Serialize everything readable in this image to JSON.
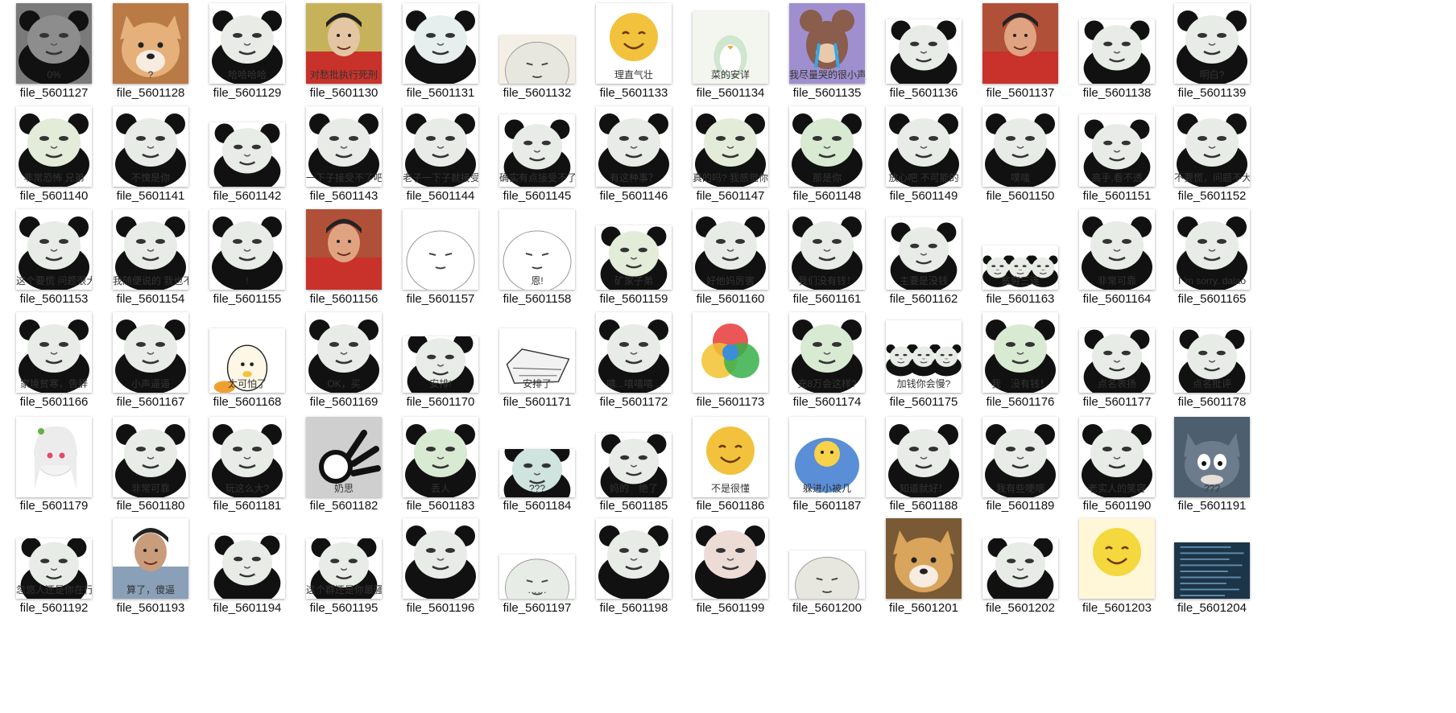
{
  "files": [
    {
      "name": "file_5601127",
      "caption": "0%",
      "bg": "#7a7a7a",
      "face": "#8d8d8d",
      "kind": "panda",
      "h": 100
    },
    {
      "name": "file_5601128",
      "caption": "?",
      "bg": "#b97a45",
      "face": "#e6b07a",
      "kind": "dog",
      "h": 100
    },
    {
      "name": "file_5601129",
      "caption": "哈哈哈哈",
      "bg": "#ffffff",
      "face": "#e9ece6",
      "kind": "panda",
      "h": 100
    },
    {
      "name": "file_5601130",
      "caption": "对愁批执行死刑",
      "bg": "#c7b25c",
      "face": "#e5c6a4",
      "kind": "person",
      "h": 100
    },
    {
      "name": "file_5601131",
      "caption": "",
      "bg": "#ffffff",
      "face": "#e6eeee",
      "kind": "panda",
      "h": 100
    },
    {
      "name": "file_5601132",
      "caption": "",
      "bg": "#f4efe4",
      "face": "#e7e7df",
      "kind": "blob",
      "h": 60
    },
    {
      "name": "file_5601133",
      "caption": "理直气壮",
      "bg": "#ffffff",
      "face": "#f2c23d",
      "kind": "smile",
      "h": 100
    },
    {
      "name": "file_5601134",
      "caption": "菜的安详",
      "bg": "#f3f6ee",
      "face": "#e7ede7",
      "kind": "penguin",
      "h": 90
    },
    {
      "name": "file_5601135",
      "caption": "我尽量哭的很小声",
      "bg": "#9f8fce",
      "face": "#8a5d4c",
      "kind": "mouse",
      "h": 100
    },
    {
      "name": "file_5601136",
      "caption": "",
      "bg": "#ffffff",
      "face": "#e7ece6",
      "kind": "panda",
      "h": 80
    },
    {
      "name": "file_5601137",
      "caption": "",
      "bg": "#b05038",
      "face": "#e0a382",
      "kind": "person",
      "h": 100
    },
    {
      "name": "file_5601138",
      "caption": "",
      "bg": "#ffffff",
      "face": "#e8ece6",
      "kind": "panda",
      "h": 80
    },
    {
      "name": "file_5601139",
      "caption": "明白?",
      "bg": "#ffffff",
      "face": "#e8ece6",
      "kind": "panda",
      "h": 100
    },
    {
      "name": "file_5601140",
      "caption": "非常恐怖 兄弟",
      "bg": "#ffffff",
      "face": "#e3ecd8",
      "kind": "panda",
      "h": 100
    },
    {
      "name": "file_5601141",
      "caption": "不愧是你",
      "bg": "#ffffff",
      "face": "#e8ece6",
      "kind": "panda",
      "h": 100
    },
    {
      "name": "file_5601142",
      "caption": "",
      "bg": "#ffffff",
      "face": "#e8ece6",
      "kind": "panda",
      "h": 80
    },
    {
      "name": "file_5601143",
      "caption": "一下子接受不了吧",
      "bg": "#ffffff",
      "face": "#e8ece6",
      "kind": "panda",
      "h": 100
    },
    {
      "name": "file_5601144",
      "caption": "老子一下子就接受了",
      "bg": "#ffffff",
      "face": "#e8ece6",
      "kind": "panda",
      "h": 100
    },
    {
      "name": "file_5601145",
      "caption": "确实有点接受不了",
      "bg": "#ffffff",
      "face": "#e8ece6",
      "kind": "panda",
      "h": 90
    },
    {
      "name": "file_5601146",
      "caption": "有这种事？",
      "bg": "#ffffff",
      "face": "#e8ece6",
      "kind": "panda",
      "h": 100
    },
    {
      "name": "file_5601147",
      "caption": "真的吗? 我感觉你在骗我",
      "bg": "#ffffff",
      "face": "#e3ecd8",
      "kind": "panda",
      "h": 100
    },
    {
      "name": "file_5601148",
      "caption": "那是你",
      "bg": "#ffffff",
      "face": "#d9ead2",
      "kind": "panda",
      "h": 100
    },
    {
      "name": "file_5601149",
      "caption": "放心吧 不可能的",
      "bg": "#ffffff",
      "face": "#e8ece6",
      "kind": "panda",
      "h": 100
    },
    {
      "name": "file_5601150",
      "caption": "噗嗤",
      "bg": "#ffffff",
      "face": "#e8ece6",
      "kind": "panda",
      "h": 100
    },
    {
      "name": "file_5601151",
      "caption": "高手,看不透",
      "bg": "#ffffff",
      "face": "#e8ece6",
      "kind": "panda",
      "h": 90
    },
    {
      "name": "file_5601152",
      "caption": "不要慌，问题不大",
      "bg": "#ffffff",
      "face": "#e8ece6",
      "kind": "panda",
      "h": 100
    },
    {
      "name": "file_5601153",
      "caption": "这个要慌 问题很大",
      "bg": "#ffffff",
      "face": "#e8ece6",
      "kind": "panda",
      "h": 100
    },
    {
      "name": "file_5601154",
      "caption": "我随便说的 我也不知道",
      "bg": "#ffffff",
      "face": "#e8ece6",
      "kind": "panda",
      "h": 100
    },
    {
      "name": "file_5601155",
      "caption": "!",
      "bg": "#ffffff",
      "face": "#e8ece6",
      "kind": "panda",
      "h": 100
    },
    {
      "name": "file_5601156",
      "caption": "",
      "bg": "#b05038",
      "face": "#e0a382",
      "kind": "person",
      "h": 100
    },
    {
      "name": "file_5601157",
      "caption": "",
      "bg": "#ffffff",
      "face": "#ffffff",
      "kind": "blob",
      "h": 100
    },
    {
      "name": "file_5601158",
      "caption": "恩!",
      "bg": "#ffffff",
      "face": "#ffffff",
      "kind": "blob",
      "h": 100
    },
    {
      "name": "file_5601159",
      "caption": "矿家子弟",
      "bg": "#ffffff",
      "face": "#e3ecd8",
      "kind": "panda",
      "h": 80
    },
    {
      "name": "file_5601160",
      "caption": "好他妈厉害",
      "bg": "#ffffff",
      "face": "#e8ece6",
      "kind": "panda",
      "h": 100
    },
    {
      "name": "file_5601161",
      "caption": "我们没有钱！",
      "bg": "#ffffff",
      "face": "#e8ece6",
      "kind": "panda",
      "h": 100
    },
    {
      "name": "file_5601162",
      "caption": "主要是没钱",
      "bg": "#ffffff",
      "face": "#e8ece6",
      "kind": "panda",
      "h": 90
    },
    {
      "name": "file_5601163",
      "caption": "贫穷三连",
      "bg": "#ffffff",
      "face": "#e8ece6",
      "kind": "panda3",
      "h": 55
    },
    {
      "name": "file_5601164",
      "caption": "非常可靠",
      "bg": "#ffffff",
      "face": "#e8ece6",
      "kind": "panda",
      "h": 100
    },
    {
      "name": "file_5601165",
      "caption": "I 'm sorry. dalao",
      "bg": "#ffffff",
      "face": "#e8ece6",
      "kind": "panda",
      "h": 100
    },
    {
      "name": "file_5601166",
      "caption": "家境贫寒，告辞",
      "bg": "#ffffff",
      "face": "#e8ece6",
      "kind": "panda",
      "h": 100
    },
    {
      "name": "file_5601167",
      "caption": "小声逼逼",
      "bg": "#ffffff",
      "face": "#e8ece6",
      "kind": "panda",
      "h": 100
    },
    {
      "name": "file_5601168",
      "caption": "太可怕了",
      "bg": "#ffffff",
      "face": "#f2c23d",
      "kind": "egg",
      "h": 80
    },
    {
      "name": "file_5601169",
      "caption": "OK，买",
      "bg": "#ffffff",
      "face": "#e8ece6",
      "kind": "panda",
      "h": 100
    },
    {
      "name": "file_5601170",
      "caption": "安排!",
      "bg": "#ffffff",
      "face": "#e8ece6",
      "kind": "panda",
      "h": 70
    },
    {
      "name": "file_5601171",
      "caption": "安排了",
      "bg": "#ffffff",
      "face": "#dddddd",
      "kind": "coffin",
      "h": 80
    },
    {
      "name": "file_5601172",
      "caption": "嘻...嘻嘻嘻...",
      "bg": "#ffffff",
      "face": "#e8ece6",
      "kind": "panda",
      "h": 100
    },
    {
      "name": "file_5601173",
      "caption": "",
      "bg": "#ffffff",
      "face": "#ffffff",
      "kind": "venn",
      "h": 100
    },
    {
      "name": "file_5601174",
      "caption": "充8万会这样?",
      "bg": "#ffffff",
      "face": "#d9ead2",
      "kind": "panda",
      "h": 100
    },
    {
      "name": "file_5601175",
      "caption": "加钱你会慢?",
      "bg": "#ffffff",
      "face": "#e8ece6",
      "kind": "panda3",
      "h": 90
    },
    {
      "name": "file_5601176",
      "caption": "我　没有钱！",
      "bg": "#ffffff",
      "face": "#d9ead2",
      "kind": "panda",
      "h": 100
    },
    {
      "name": "file_5601177",
      "caption": "点名表扬",
      "bg": "#ffffff",
      "face": "#e8ece6",
      "kind": "panda",
      "h": 80
    },
    {
      "name": "file_5601178",
      "caption": "点名批评",
      "bg": "#ffffff",
      "face": "#e8ece6",
      "kind": "panda",
      "h": 80
    },
    {
      "name": "file_5601179",
      "caption": "",
      "bg": "#ffffff",
      "face": "#f7f7f7",
      "kind": "anime",
      "h": 100
    },
    {
      "name": "file_5601180",
      "caption": "非常可靠",
      "bg": "#ffffff",
      "face": "#e8ece6",
      "kind": "panda",
      "h": 100
    },
    {
      "name": "file_5601181",
      "caption": "玩这么大?",
      "bg": "#ffffff",
      "face": "#e8ece6",
      "kind": "panda",
      "h": 100
    },
    {
      "name": "file_5601182",
      "caption": "奶思",
      "bg": "#d0d0d0",
      "face": "#bdbdbd",
      "kind": "hand",
      "h": 100
    },
    {
      "name": "file_5601183",
      "caption": "丢人",
      "bg": "#ffffff",
      "face": "#d9ead2",
      "kind": "panda",
      "h": 100
    },
    {
      "name": "file_5601184",
      "caption": "???",
      "bg": "#ffffff",
      "face": "#cfe3df",
      "kind": "panda",
      "h": 60
    },
    {
      "name": "file_5601185",
      "caption": "妈的　绝了",
      "bg": "#ffffff",
      "face": "#e8ece6",
      "kind": "panda",
      "h": 80
    },
    {
      "name": "file_5601186",
      "caption": "不是很懂",
      "bg": "#ffffff",
      "face": "#f2c23d",
      "kind": "smile",
      "h": 100
    },
    {
      "name": "file_5601187",
      "caption": "躲进小被几",
      "bg": "#ffffff",
      "face": "#5a8ed6",
      "kind": "blanket",
      "h": 100
    },
    {
      "name": "file_5601188",
      "caption": "知道就好！",
      "bg": "#ffffff",
      "face": "#e8ece6",
      "kind": "panda",
      "h": 100
    },
    {
      "name": "file_5601189",
      "caption": "我有些哽咽",
      "bg": "#ffffff",
      "face": "#e8ece6",
      "kind": "panda",
      "h": 100
    },
    {
      "name": "file_5601190",
      "caption": "老实人的笑容",
      "bg": "#ffffff",
      "face": "#e8ece6",
      "kind": "panda",
      "h": 100
    },
    {
      "name": "file_5601191",
      "caption": "???",
      "bg": "#4d5e6e",
      "face": "#6c7c8c",
      "kind": "cat",
      "h": 100
    },
    {
      "name": "file_5601192",
      "caption": "忽悠人还是你在行",
      "bg": "#ffffff",
      "face": "#e8ece6",
      "kind": "panda",
      "h": 75
    },
    {
      "name": "file_5601193",
      "caption": "算了，傻逼",
      "bg": "#ffffff",
      "face": "#c99c7b",
      "kind": "person2",
      "h": 100
    },
    {
      "name": "file_5601194",
      "caption": "",
      "bg": "#ffffff",
      "face": "#e8ece6",
      "kind": "panda",
      "h": 80
    },
    {
      "name": "file_5601195",
      "caption": "这个群还是你最骚",
      "bg": "#ffffff",
      "face": "#e8ece6",
      "kind": "panda",
      "h": 75
    },
    {
      "name": "file_5601196",
      "caption": "",
      "bg": "#ffffff",
      "face": "#e8ece6",
      "kind": "panda",
      "h": 100
    },
    {
      "name": "file_5601197",
      "caption": "……",
      "bg": "#ffffff",
      "face": "#e8ece6",
      "kind": "blob",
      "h": 55
    },
    {
      "name": "file_5601198",
      "caption": "",
      "bg": "#ffffff",
      "face": "#e8ece6",
      "kind": "panda",
      "h": 100
    },
    {
      "name": "file_5601199",
      "caption": "",
      "bg": "#ffffff",
      "face": "#eddcd6",
      "kind": "panda",
      "h": 100
    },
    {
      "name": "file_5601200",
      "caption": "",
      "bg": "#ffffff",
      "face": "#e7e7df",
      "kind": "blob",
      "h": 60
    },
    {
      "name": "file_5601201",
      "caption": "",
      "bg": "#7a5a35",
      "face": "#d9a45c",
      "kind": "dog",
      "h": 100
    },
    {
      "name": "file_5601202",
      "caption": "",
      "bg": "#ffffff",
      "face": "#e8ece6",
      "kind": "panda",
      "h": 75
    },
    {
      "name": "file_5601203",
      "caption": "",
      "bg": "#fff7d8",
      "face": "#f5d73e",
      "kind": "smile",
      "h": 100
    },
    {
      "name": "file_5601204",
      "caption": "",
      "bg": "#1d3548",
      "face": "#2b4a63",
      "kind": "screen",
      "h": 70
    }
  ]
}
